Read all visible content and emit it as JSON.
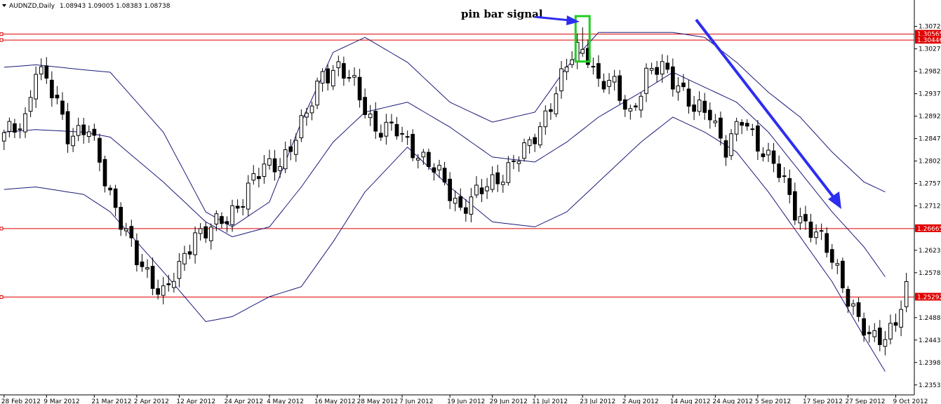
{
  "chart_data": {
    "type": "candlestick",
    "symbol_header": "AUDNZD,Daily",
    "ohlc_header": "1.08943 1.09005 1.08383 1.08738",
    "ylim": [
      1.2333,
      1.3094
    ],
    "price_ticks": [
      "1.30720",
      "1.30270",
      "1.29820",
      "1.29370",
      "1.28920",
      "1.28470",
      "1.28020",
      "1.27570",
      "1.27120",
      "1.26665",
      "1.26230",
      "1.25780",
      "1.25292",
      "1.24880",
      "1.24430",
      "1.23980",
      "1.23530"
    ],
    "date_ticks": [
      {
        "index": 0,
        "label": "28 Feb 2012"
      },
      {
        "index": 8,
        "label": "9 Mar 2012"
      },
      {
        "index": 17,
        "label": "21 Mar 2012"
      },
      {
        "index": 25,
        "label": "2 Apr 2012"
      },
      {
        "index": 33,
        "label": "12 Apr 2012"
      },
      {
        "index": 42,
        "label": "24 Apr 2012"
      },
      {
        "index": 50,
        "label": "4 May 2012"
      },
      {
        "index": 59,
        "label": "16 May 2012"
      },
      {
        "index": 67,
        "label": "28 May 2012"
      },
      {
        "index": 75,
        "label": "7 Jun 2012"
      },
      {
        "index": 84,
        "label": "19 Jun 2012"
      },
      {
        "index": 92,
        "label": "29 Jun 2012"
      },
      {
        "index": 100,
        "label": "11 Jul 2012"
      },
      {
        "index": 109,
        "label": "23 Jul 2012"
      },
      {
        "index": 117,
        "label": "2 Aug 2012"
      },
      {
        "index": 126,
        "label": "14 Aug 2012"
      },
      {
        "index": 134,
        "label": "24 Aug 2012"
      },
      {
        "index": 142,
        "label": "5 Sep 2012"
      },
      {
        "index": 151,
        "label": "17 Sep 2012"
      },
      {
        "index": 159,
        "label": "27 Sep 2012"
      },
      {
        "index": 168,
        "label": "9 Oct 2012"
      }
    ],
    "levels": [
      {
        "value": 1.30565,
        "label": "1.30565",
        "color": "#e00000"
      },
      {
        "value": 1.30446,
        "label": "1.30446",
        "color": "#e00000"
      },
      {
        "value": 1.26665,
        "label": "1.26665",
        "color": "#e00000"
      },
      {
        "value": 1.25292,
        "label": "1.25292",
        "color": "#e00000"
      }
    ],
    "close_anchors": [
      [
        0,
        1.285
      ],
      [
        4,
        1.289
      ],
      [
        6,
        1.299
      ],
      [
        10,
        1.292
      ],
      [
        12,
        1.286
      ],
      [
        16,
        1.286
      ],
      [
        20,
        1.274
      ],
      [
        25,
        1.26
      ],
      [
        30,
        1.254
      ],
      [
        33,
        1.258
      ],
      [
        36,
        1.266
      ],
      [
        42,
        1.268
      ],
      [
        47,
        1.277
      ],
      [
        52,
        1.28
      ],
      [
        57,
        1.289
      ],
      [
        60,
        1.298
      ],
      [
        63,
        1.299
      ],
      [
        66,
        1.295
      ],
      [
        70,
        1.287
      ],
      [
        74,
        1.286
      ],
      [
        78,
        1.282
      ],
      [
        82,
        1.277
      ],
      [
        86,
        1.271
      ],
      [
        90,
        1.274
      ],
      [
        95,
        1.279
      ],
      [
        99,
        1.283
      ],
      [
        103,
        1.292
      ],
      [
        107,
        1.301
      ],
      [
        109,
        1.304
      ],
      [
        110,
        1.302
      ],
      [
        112,
        1.296
      ],
      [
        115,
        1.295
      ],
      [
        118,
        1.29
      ],
      [
        121,
        1.297
      ],
      [
        124,
        1.299
      ],
      [
        127,
        1.296
      ],
      [
        130,
        1.29
      ],
      [
        133,
        1.29
      ],
      [
        136,
        1.283
      ],
      [
        139,
        1.288
      ],
      [
        142,
        1.284
      ],
      [
        145,
        1.28
      ],
      [
        149,
        1.27
      ],
      [
        153,
        1.266
      ],
      [
        157,
        1.258
      ],
      [
        160,
        1.251
      ],
      [
        163,
        1.244
      ],
      [
        166,
        1.245
      ],
      [
        168,
        1.249
      ],
      [
        170,
        1.254
      ]
    ],
    "bands": {
      "upper": [
        [
          0,
          1.299
        ],
        [
          6,
          1.2995
        ],
        [
          15,
          1.2985
        ],
        [
          20,
          1.298
        ],
        [
          30,
          1.286
        ],
        [
          38,
          1.27
        ],
        [
          43,
          1.267
        ],
        [
          50,
          1.272
        ],
        [
          56,
          1.288
        ],
        [
          62,
          1.302
        ],
        [
          68,
          1.305
        ],
        [
          76,
          1.3
        ],
        [
          84,
          1.292
        ],
        [
          92,
          1.288
        ],
        [
          100,
          1.29
        ],
        [
          106,
          1.299
        ],
        [
          112,
          1.306
        ],
        [
          120,
          1.306
        ],
        [
          126,
          1.306
        ],
        [
          132,
          1.305
        ],
        [
          138,
          1.3
        ],
        [
          144,
          1.294
        ],
        [
          150,
          1.289
        ],
        [
          156,
          1.282
        ],
        [
          162,
          1.276
        ],
        [
          166,
          1.274
        ]
      ],
      "middle": [
        [
          0,
          1.286
        ],
        [
          6,
          1.2865
        ],
        [
          15,
          1.286
        ],
        [
          20,
          1.285
        ],
        [
          30,
          1.276
        ],
        [
          38,
          1.268
        ],
        [
          43,
          1.265
        ],
        [
          50,
          1.267
        ],
        [
          56,
          1.275
        ],
        [
          62,
          1.284
        ],
        [
          68,
          1.29
        ],
        [
          76,
          1.292
        ],
        [
          84,
          1.287
        ],
        [
          92,
          1.281
        ],
        [
          100,
          1.28
        ],
        [
          106,
          1.284
        ],
        [
          112,
          1.289
        ],
        [
          120,
          1.294
        ],
        [
          126,
          1.298
        ],
        [
          132,
          1.295
        ],
        [
          138,
          1.292
        ],
        [
          144,
          1.286
        ],
        [
          150,
          1.278
        ],
        [
          156,
          1.27
        ],
        [
          162,
          1.263
        ],
        [
          166,
          1.257
        ]
      ],
      "lower": [
        [
          0,
          1.2745
        ],
        [
          6,
          1.275
        ],
        [
          15,
          1.2735
        ],
        [
          20,
          1.27
        ],
        [
          30,
          1.258
        ],
        [
          38,
          1.248
        ],
        [
          43,
          1.249
        ],
        [
          50,
          1.253
        ],
        [
          56,
          1.255
        ],
        [
          62,
          1.264
        ],
        [
          68,
          1.274
        ],
        [
          76,
          1.283
        ],
        [
          84,
          1.275
        ],
        [
          92,
          1.268
        ],
        [
          100,
          1.267
        ],
        [
          106,
          1.27
        ],
        [
          112,
          1.276
        ],
        [
          120,
          1.284
        ],
        [
          126,
          1.289
        ],
        [
          132,
          1.286
        ],
        [
          138,
          1.282
        ],
        [
          144,
          1.274
        ],
        [
          150,
          1.265
        ],
        [
          156,
          1.256
        ],
        [
          162,
          1.245
        ],
        [
          166,
          1.238
        ]
      ]
    },
    "annotation": {
      "text": "pin bar signal",
      "highlight_index": 109
    }
  }
}
